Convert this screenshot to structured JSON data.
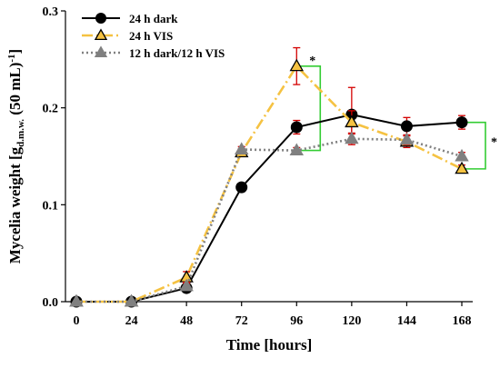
{
  "chart_data": {
    "type": "line",
    "x_label": "Time [hours]",
    "y_label_main": "Mycelia weight  [g",
    "y_label_sub": "d.m.w.",
    "y_label_tail": " (50 mL)",
    "y_label_sup": "-1",
    "y_label_end": "]",
    "x": [
      0,
      24,
      48,
      72,
      96,
      120,
      144,
      168
    ],
    "x_ticks": [
      "0",
      "24",
      "48",
      "72",
      "96",
      "120",
      "144",
      "168"
    ],
    "ylim": [
      0,
      0.3
    ],
    "y_ticks": [
      {
        "v": 0,
        "label": "0.0"
      },
      {
        "v": 0.1,
        "label": "0.1"
      },
      {
        "v": 0.2,
        "label": "0.2"
      },
      {
        "v": 0.3,
        "label": "0.3"
      }
    ],
    "grid": false,
    "legend_position": "top-left",
    "series": [
      {
        "name": "24 h dark",
        "color": "#000000",
        "line": "solid",
        "marker": "circle",
        "marker_fill": "#000000",
        "values": [
          0.0,
          0.0,
          0.014,
          0.118,
          0.18,
          0.193,
          0.181,
          0.185
        ],
        "errors": [
          0,
          0,
          0.004,
          0.003,
          0.007,
          0.028,
          0.009,
          0.007
        ]
      },
      {
        "name": "24 h VIS",
        "color": "#F5C242",
        "line": "dashdot",
        "marker": "triangle",
        "marker_fill": "#F5C242",
        "marker_stroke": "#000000",
        "values": [
          0.0,
          0.0,
          0.025,
          0.154,
          0.243,
          0.185,
          0.165,
          0.137
        ],
        "errors": [
          0,
          0,
          0.006,
          0.004,
          0.019,
          0.012,
          0.006,
          0.004
        ]
      },
      {
        "name": "12 h dark/12 h VIS",
        "color": "#808080",
        "line": "dotted",
        "marker": "triangle",
        "marker_fill": "#808080",
        "values": [
          0.0,
          0.0,
          0.016,
          0.157,
          0.156,
          0.168,
          0.167,
          0.15
        ],
        "errors": [
          0,
          0,
          0.004,
          0.003,
          0.003,
          0.006,
          0.005,
          0.004
        ]
      }
    ],
    "error_bar_color": "#D40000",
    "significance": [
      {
        "x": 96,
        "y_low": 0.156,
        "y_high": 0.243,
        "label": "*"
      },
      {
        "x": 168,
        "y_low": 0.137,
        "y_high": 0.185,
        "label": "*"
      }
    ],
    "significance_color": "#33CC33"
  }
}
